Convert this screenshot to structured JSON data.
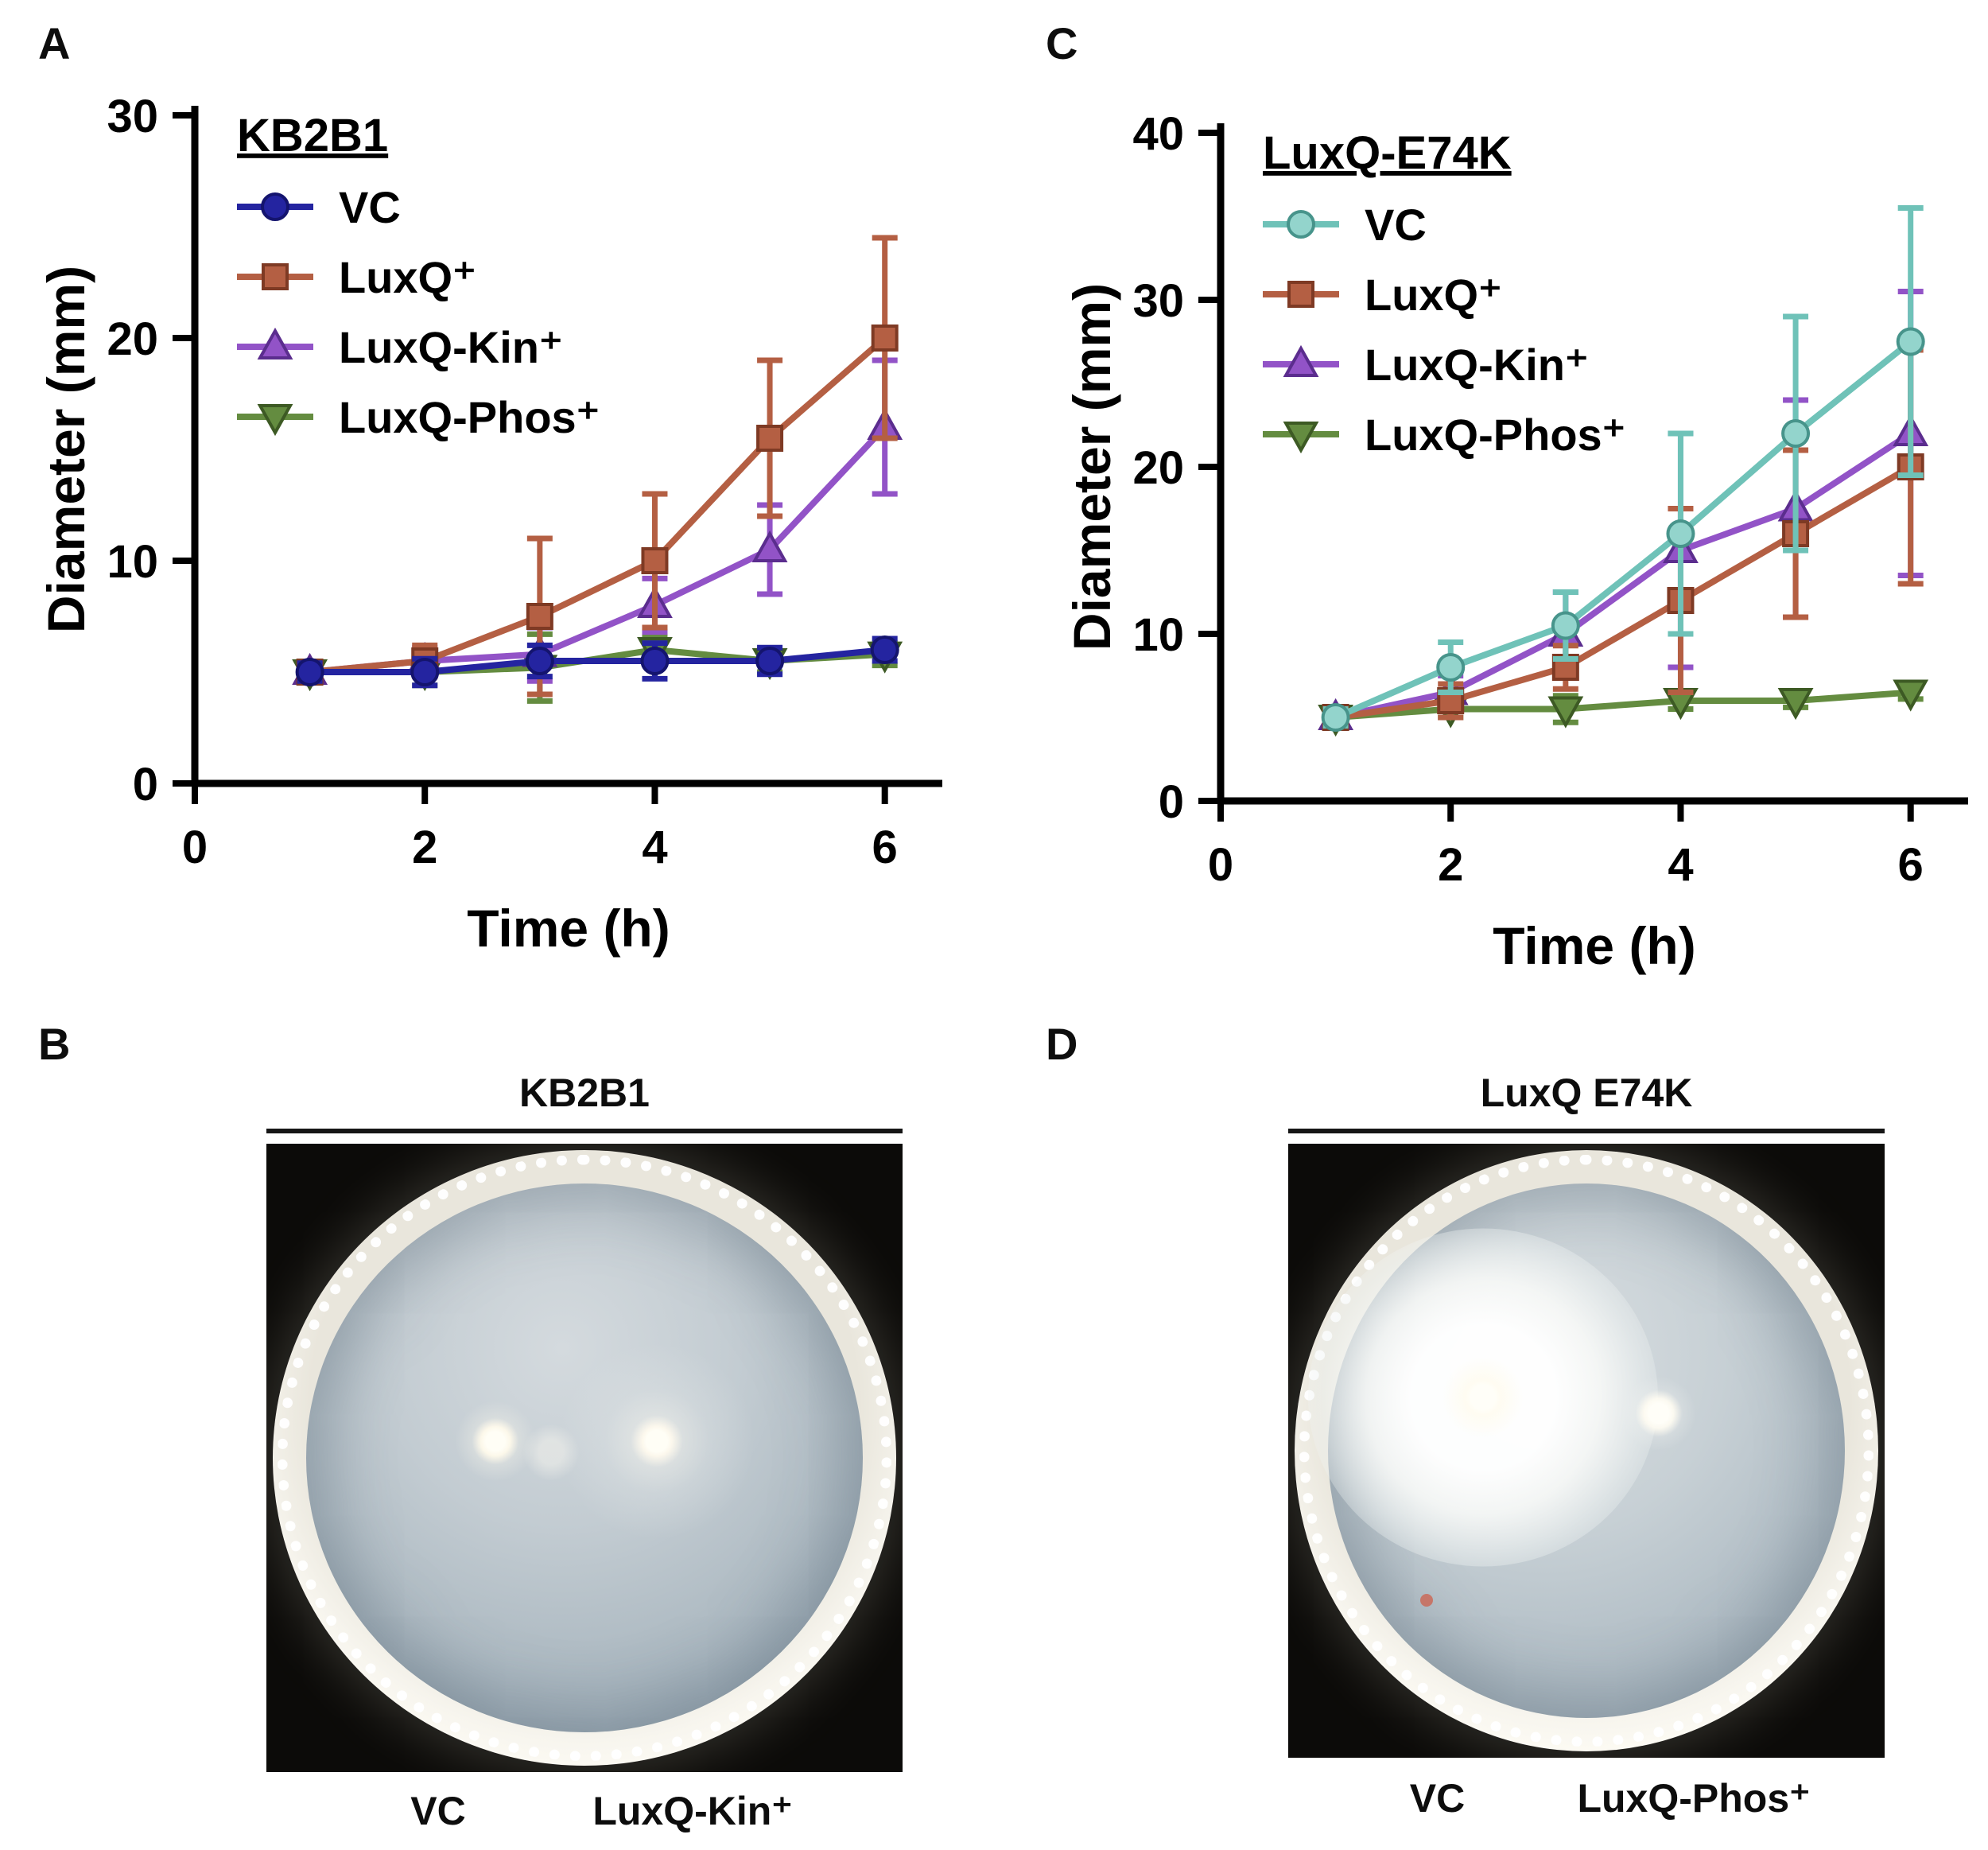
{
  "panels": {
    "A": {
      "label": "A"
    },
    "B": {
      "label": "B",
      "title": "KB2B1",
      "captions": [
        "VC",
        "LuxQ-Kin⁺"
      ]
    },
    "C": {
      "label": "C"
    },
    "D": {
      "label": "D",
      "title": "LuxQ E74K",
      "captions": [
        "VC",
        "LuxQ-Phos⁺"
      ]
    }
  },
  "chart_data": [
    {
      "id": "A",
      "type": "line",
      "title": "KB2B1",
      "xlabel": "Time (h)",
      "ylabel": "Diameter (mm)",
      "x": [
        1,
        2,
        3,
        4,
        5,
        6
      ],
      "xlim": [
        0,
        6.5
      ],
      "xticks": [
        0,
        2,
        4,
        6
      ],
      "ylim": [
        0,
        30
      ],
      "yticks": [
        0,
        10,
        20,
        30
      ],
      "grid": false,
      "legend_position": "top-left",
      "series": [
        {
          "name": "VC",
          "marker": "circle",
          "color": "#2424a0",
          "edge": "#14146e",
          "values": [
            5,
            5,
            5.5,
            5.5,
            5.5,
            6
          ],
          "errors": [
            0.4,
            0.6,
            0.7,
            0.8,
            0.6,
            0.5
          ]
        },
        {
          "name": "LuxQ⁺",
          "marker": "square",
          "color": "#b45f43",
          "edge": "#7e3a24",
          "values": [
            5,
            5.5,
            7.5,
            10,
            15.5,
            20
          ],
          "errors": [
            0.4,
            0.7,
            3.5,
            3,
            3.5,
            4.5
          ]
        },
        {
          "name": "LuxQ-Kin⁺",
          "marker": "triangle-up",
          "color": "#9253c7",
          "edge": "#5b2d8e",
          "values": [
            5,
            5.5,
            5.8,
            8,
            10.5,
            16
          ],
          "errors": [
            0.4,
            0.6,
            1.2,
            1.2,
            2,
            3
          ]
        },
        {
          "name": "LuxQ-Phos⁺",
          "marker": "triangle-down",
          "color": "#648c40",
          "edge": "#3d5a24",
          "values": [
            5,
            5,
            5.2,
            6,
            5.5,
            5.8
          ],
          "errors": [
            0.4,
            0.6,
            1.5,
            0.6,
            0.5,
            0.5
          ]
        }
      ]
    },
    {
      "id": "C",
      "type": "line",
      "title": "LuxQ-E74K",
      "xlabel": "Time (h)",
      "ylabel": "Diameter (mm)",
      "x": [
        1,
        2,
        3,
        4,
        5,
        6
      ],
      "xlim": [
        0,
        6.5
      ],
      "xticks": [
        0,
        2,
        4,
        6
      ],
      "ylim": [
        0,
        40
      ],
      "yticks": [
        0,
        10,
        20,
        30,
        40
      ],
      "grid": false,
      "legend_position": "top-left",
      "series": [
        {
          "name": "VC",
          "marker": "circle",
          "color": "#93d4cc",
          "line": "#6fc2b8",
          "edge": "#47948b",
          "values": [
            5,
            8,
            10.5,
            16,
            22,
            27.5
          ],
          "errors": [
            0.5,
            1.5,
            2,
            6,
            7,
            8
          ]
        },
        {
          "name": "LuxQ⁺",
          "marker": "square",
          "color": "#b45f43",
          "edge": "#7e3a24",
          "values": [
            5,
            6,
            8,
            12,
            16,
            20
          ],
          "errors": [
            0.5,
            1,
            1.3,
            5.5,
            5,
            7
          ]
        },
        {
          "name": "LuxQ-Kin⁺",
          "marker": "triangle-up",
          "color": "#9253c7",
          "edge": "#5b2d8e",
          "values": [
            5,
            6.5,
            10,
            15,
            17.5,
            22
          ],
          "errors": [
            0.5,
            1,
            2.5,
            7,
            6.5,
            8.5
          ]
        },
        {
          "name": "LuxQ-Phos⁺",
          "marker": "triangle-down",
          "color": "#648c40",
          "edge": "#3d5a24",
          "values": [
            5,
            5.5,
            5.5,
            6,
            6,
            6.5
          ],
          "errors": [
            0.3,
            0.5,
            0.8,
            0.5,
            0.4,
            0.4
          ]
        }
      ]
    }
  ]
}
